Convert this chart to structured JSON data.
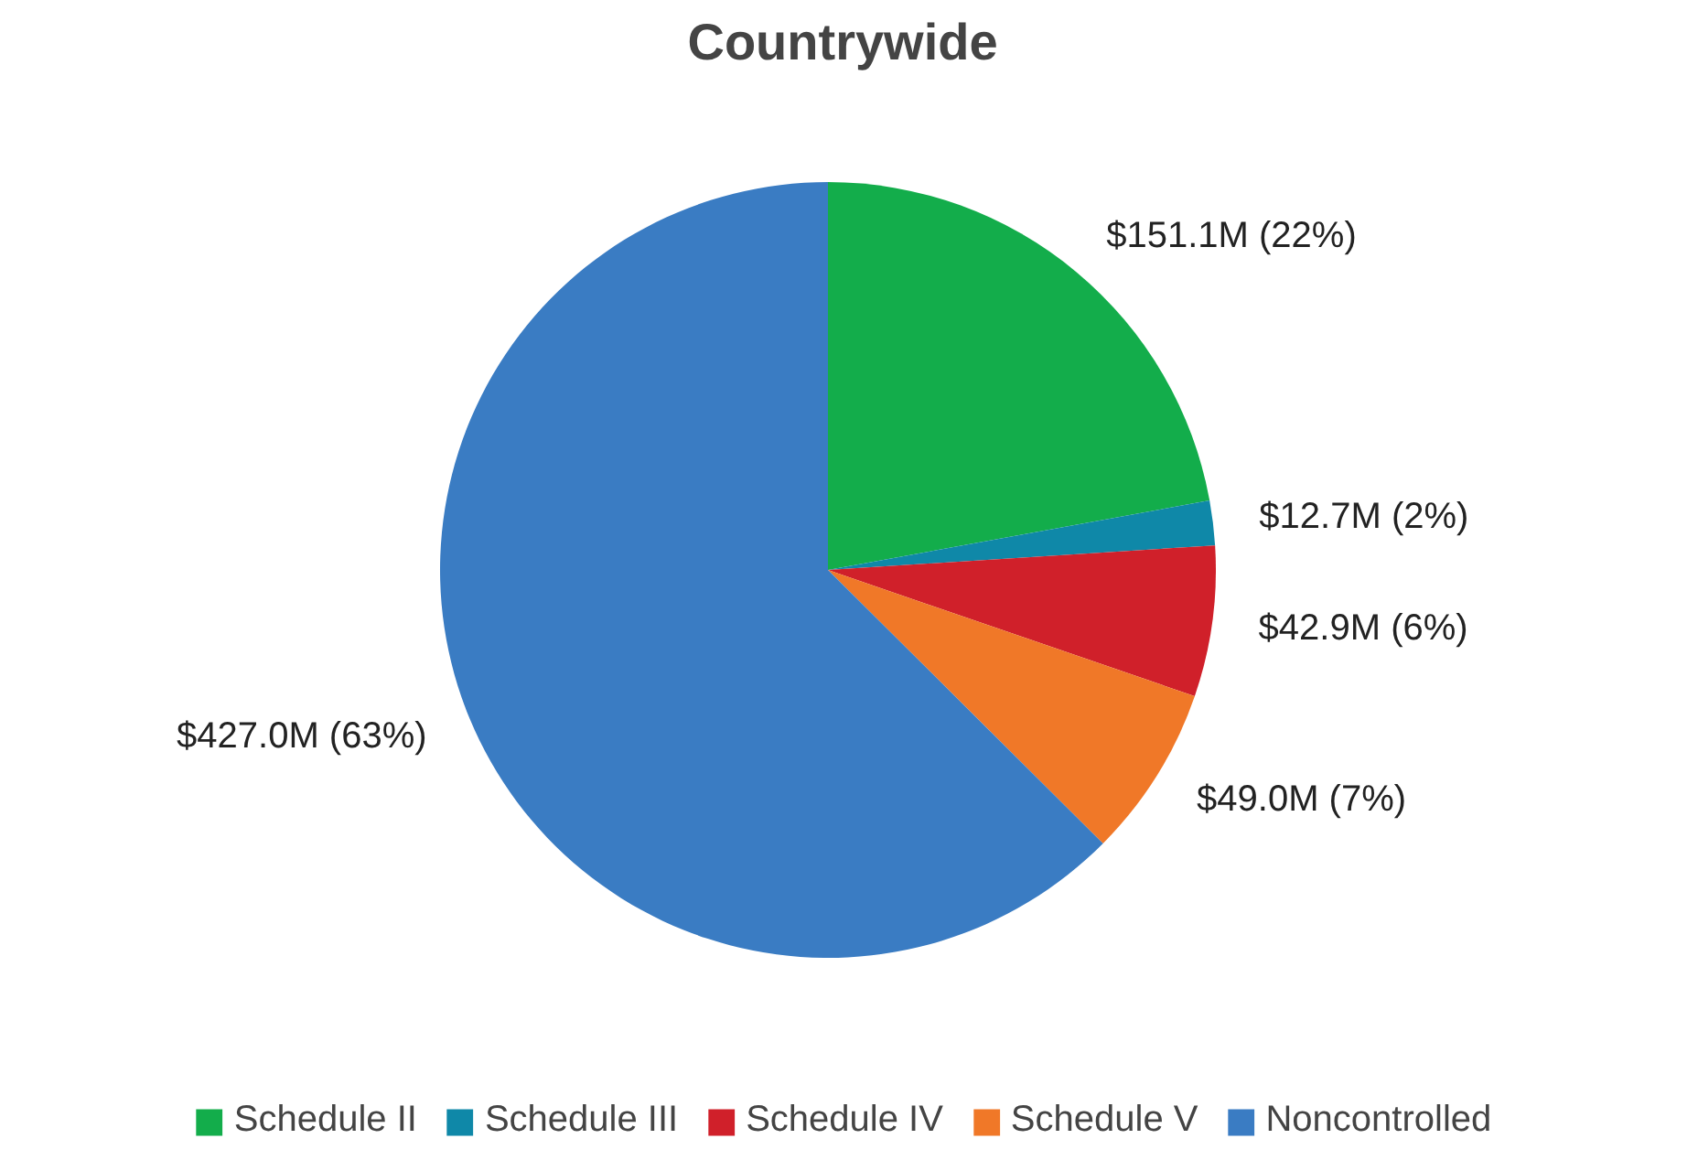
{
  "chart_data": {
    "type": "pie",
    "title": "Countrywide",
    "categories": [
      "Schedule II",
      "Schedule III",
      "Schedule IV",
      "Schedule V",
      "Noncontrolled"
    ],
    "values": [
      151100000,
      12700000,
      42900000,
      49000000,
      427000000
    ],
    "colors": [
      "#13ad4b",
      "#0f88a8",
      "#d0202a",
      "#f07828",
      "#3a7cc3"
    ],
    "value_labels": [
      "$151.1M (22%)",
      "$12.7M (2%)",
      "$42.9M (6%)",
      "$49.0M (7%)",
      "$427.0M (63%)"
    ],
    "legend": "bottom"
  }
}
